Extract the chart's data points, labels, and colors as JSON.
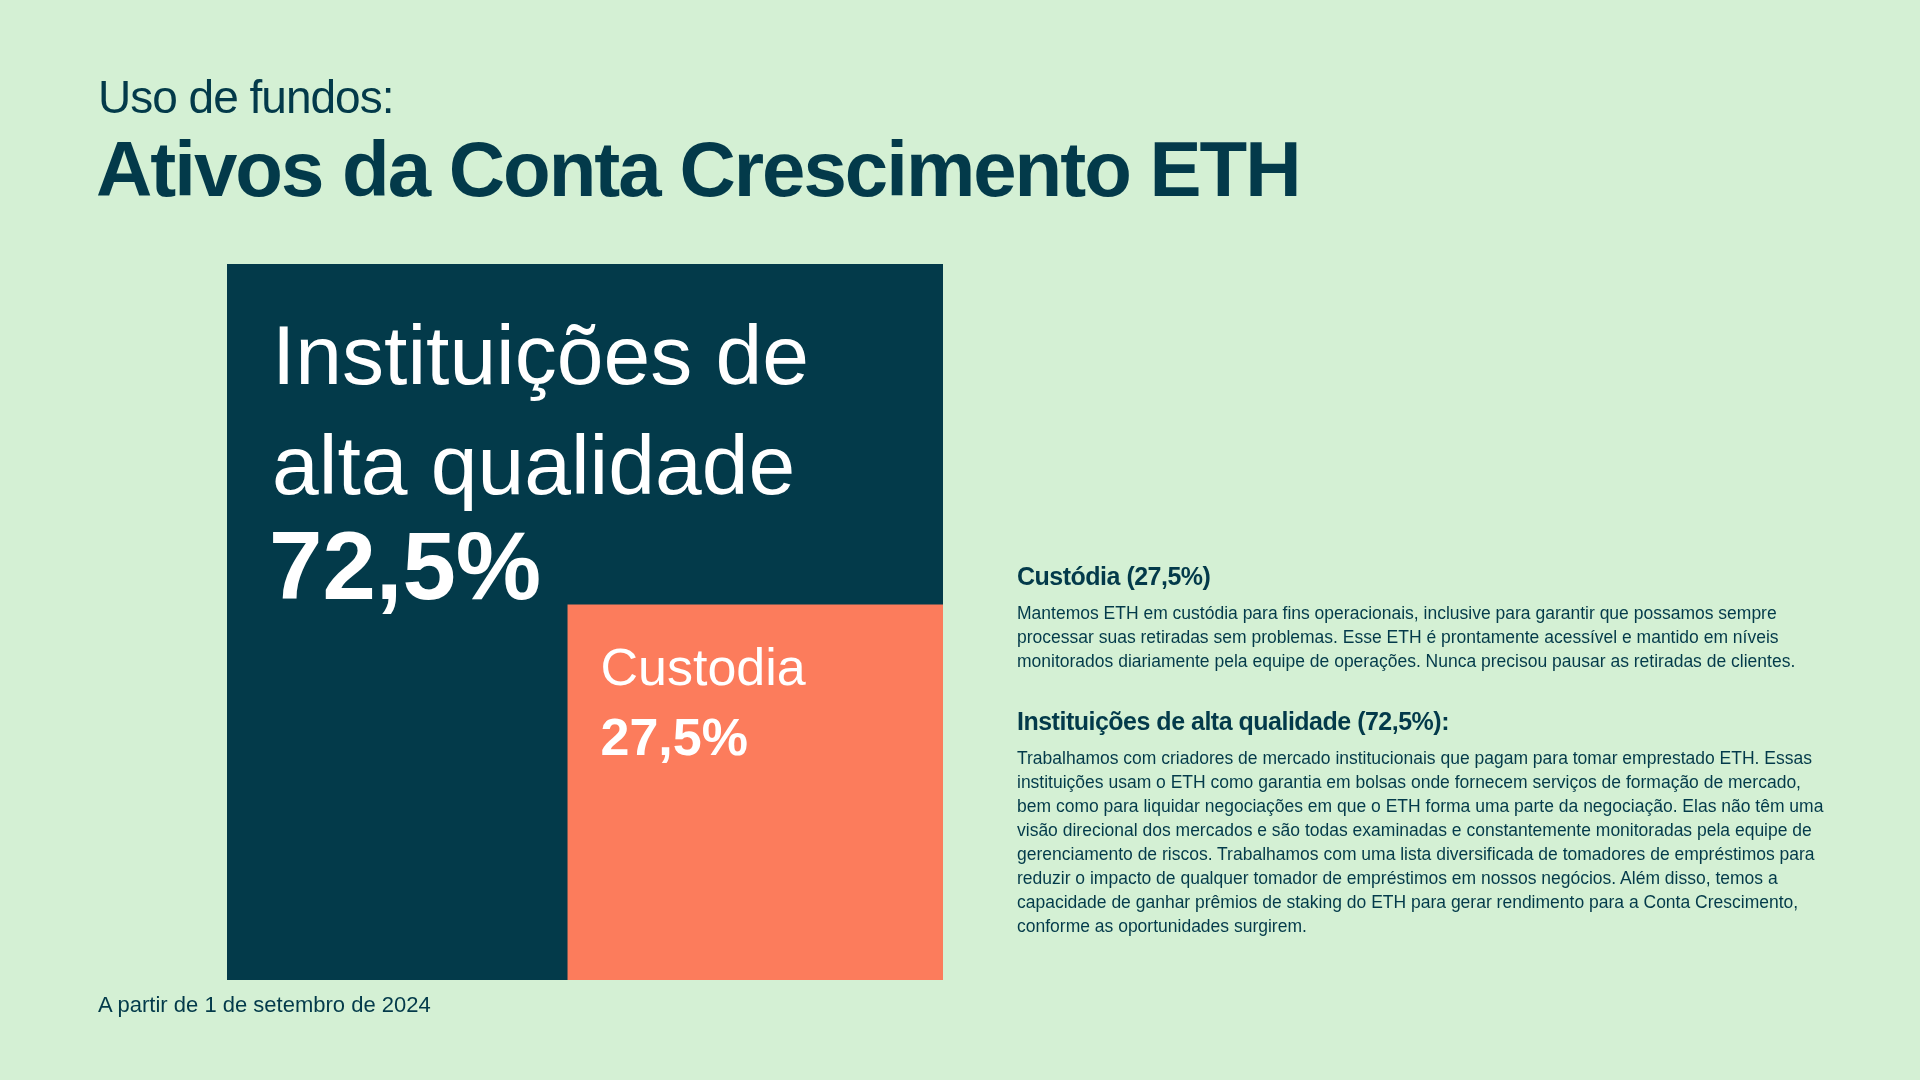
{
  "chart_data": {
    "type": "other",
    "subtitle": "Uso de fundos:",
    "title": "Ativos da Conta Crescimento ETH",
    "categories": [
      "Instituições de alta qualidade",
      "Custodia"
    ],
    "values": [
      72.5,
      27.5
    ],
    "value_labels": [
      "72,5%",
      "27,5%"
    ],
    "colors": [
      "#033a4a",
      "#fc7c5c"
    ],
    "annotations": [
      "Custódia (27,5%)",
      "Mantemos ETH em custódia para fins operacionais, inclusive para garantir que possamos sempre processar suas retiradas sem problemas. Esse ETH é prontamente acessível e mantido em níveis monitorados diariamente pela equipe de operações. Nunca precisou pausar as retiradas de clientes.",
      "Instituições de alta qualidade (72,5%):",
      "Trabalhamos com criadores de mercado institucionais que pagam para tomar emprestado ETH. Essas instituições usam o ETH como garantia em bolsas onde fornecem serviços de formação de mercado, bem como para liquidar negociações em que o ETH forma uma parte da negociação. Elas não têm uma visão direcional dos mercados e são todas examinadas e constantemente monitoradas pela equipe de gerenciamento de riscos. Trabalhamos com uma lista diversificada de tomadores de empréstimos para reduzir o impacto de qualquer tomador de empréstimos em nossos negócios. Além disso, temos a capacidade de ganhar prêmios de staking do ETH para gerar rendimento para a Conta Crescimento, conforme as oportunidades surgirem.",
      "A partir de 1 de setembro de 2024"
    ]
  }
}
